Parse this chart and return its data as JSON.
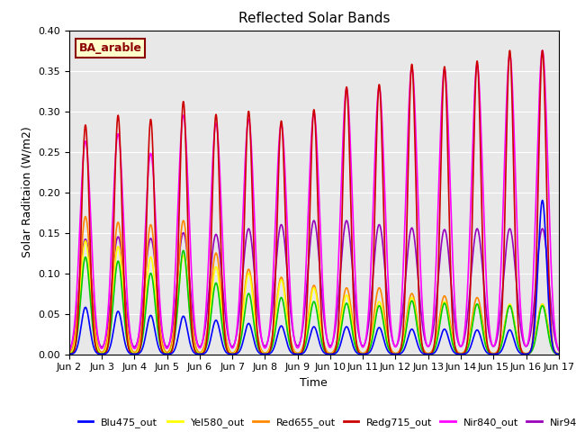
{
  "title": "Reflected Solar Bands",
  "xlabel": "Time",
  "ylabel": "Solar Raditaion (W/m2)",
  "annotation": "BA_arable",
  "ylim": [
    0.0,
    0.4
  ],
  "background_color": "#e8e8e8",
  "series_colors": {
    "Blu475_out": "#0000ff",
    "Grn535_out": "#00cc00",
    "Yel580_out": "#ffff00",
    "Red655_out": "#ff8800",
    "Redg715_out": "#cc0000",
    "Nir840_out": "#ff00ff",
    "Nir945_out": "#9900bb"
  },
  "peak_widths": {
    "Blu475_out": 0.13,
    "Grn535_out": 0.14,
    "Yel580_out": 0.15,
    "Red655_out": 0.16,
    "Redg715_out": 0.12,
    "Nir840_out": 0.17,
    "Nir945_out": 0.19
  },
  "peak_values": {
    "Blu475_out": [
      0.058,
      0.053,
      0.048,
      0.047,
      0.042,
      0.038,
      0.035,
      0.034,
      0.034,
      0.033,
      0.031,
      0.031,
      0.03,
      0.03,
      0.19
    ],
    "Grn535_out": [
      0.12,
      0.115,
      0.1,
      0.128,
      0.088,
      0.075,
      0.07,
      0.065,
      0.063,
      0.06,
      0.066,
      0.063,
      0.062,
      0.06,
      0.06
    ],
    "Yel580_out": [
      0.14,
      0.133,
      0.12,
      0.122,
      0.108,
      0.1,
      0.092,
      0.082,
      0.073,
      0.065,
      0.07,
      0.065,
      0.062,
      0.062,
      0.062
    ],
    "Red655_out": [
      0.17,
      0.163,
      0.16,
      0.165,
      0.125,
      0.105,
      0.095,
      0.085,
      0.082,
      0.082,
      0.075,
      0.072,
      0.07,
      0.06,
      0.062
    ],
    "Redg715_out": [
      0.283,
      0.295,
      0.29,
      0.312,
      0.296,
      0.3,
      0.288,
      0.302,
      0.33,
      0.333,
      0.358,
      0.355,
      0.362,
      0.375,
      0.375
    ],
    "Nir840_out": [
      0.263,
      0.272,
      0.248,
      0.295,
      0.285,
      0.29,
      0.284,
      0.298,
      0.328,
      0.33,
      0.354,
      0.352,
      0.358,
      0.37,
      0.375
    ],
    "Nir945_out": [
      0.142,
      0.145,
      0.143,
      0.15,
      0.148,
      0.155,
      0.16,
      0.165,
      0.165,
      0.16,
      0.156,
      0.154,
      0.155,
      0.155,
      0.155
    ]
  },
  "xtick_labels": [
    "Jun 2",
    "Jun 3",
    "Jun 4",
    "Jun 5",
    "Jun 6",
    "Jun 7",
    "Jun 8",
    "Jun 9",
    "Jun 10",
    "Jun 11",
    "Jun 12",
    "Jun 13",
    "Jun 14",
    "Jun 15",
    "Jun 16",
    "Jun 17"
  ]
}
